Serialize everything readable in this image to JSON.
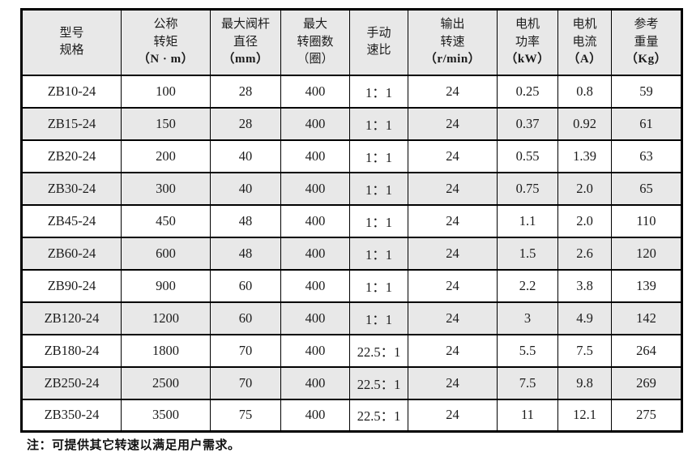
{
  "table": {
    "columns": [
      {
        "lines": [
          "型号",
          "规格"
        ],
        "unit": "",
        "unit_bold": false
      },
      {
        "lines": [
          "公称",
          "转矩"
        ],
        "unit": "（N · m）",
        "unit_bold": true
      },
      {
        "lines": [
          "最大阀杆",
          "直径"
        ],
        "unit": "（mm）",
        "unit_bold": true
      },
      {
        "lines": [
          "最大",
          "转圈数"
        ],
        "unit": "（圈）",
        "unit_bold": false
      },
      {
        "lines": [
          "手动",
          "速比"
        ],
        "unit": "",
        "unit_bold": false
      },
      {
        "lines": [
          "输出",
          "转速"
        ],
        "unit": "（r/min）",
        "unit_bold": true
      },
      {
        "lines": [
          "电机",
          "功率"
        ],
        "unit": "（kW）",
        "unit_bold": true
      },
      {
        "lines": [
          "电机",
          "电流"
        ],
        "unit": "（A）",
        "unit_bold": true
      },
      {
        "lines": [
          "参考",
          "重量"
        ],
        "unit": "（Kg）",
        "unit_bold": true
      }
    ],
    "rows": [
      [
        "ZB10-24",
        "100",
        "28",
        "400",
        "1：1",
        "24",
        "0.25",
        "0.8",
        "59"
      ],
      [
        "ZB15-24",
        "150",
        "28",
        "400",
        "1：1",
        "24",
        "0.37",
        "0.92",
        "61"
      ],
      [
        "ZB20-24",
        "200",
        "40",
        "400",
        "1：1",
        "24",
        "0.55",
        "1.39",
        "63"
      ],
      [
        "ZB30-24",
        "300",
        "40",
        "400",
        "1：1",
        "24",
        "0.75",
        "2.0",
        "65"
      ],
      [
        "ZB45-24",
        "450",
        "48",
        "400",
        "1：1",
        "24",
        "1.1",
        "2.0",
        "110"
      ],
      [
        "ZB60-24",
        "600",
        "48",
        "400",
        "1：1",
        "24",
        "1.5",
        "2.6",
        "120"
      ],
      [
        "ZB90-24",
        "900",
        "60",
        "400",
        "1：1",
        "24",
        "2.2",
        "3.8",
        "139"
      ],
      [
        "ZB120-24",
        "1200",
        "60",
        "400",
        "1：1",
        "24",
        "3",
        "4.9",
        "142"
      ],
      [
        "ZB180-24",
        "1800",
        "70",
        "400",
        "22.5：1",
        "24",
        "5.5",
        "7.5",
        "264"
      ],
      [
        "ZB250-24",
        "2500",
        "70",
        "400",
        "22.5：1",
        "24",
        "7.5",
        "9.8",
        "269"
      ],
      [
        "ZB350-24",
        "3500",
        "75",
        "400",
        "22.5：1",
        "24",
        "11",
        "12.1",
        "275"
      ]
    ],
    "shaded_row_indexes": [
      1,
      3,
      5,
      7,
      9
    ],
    "shade_color": "#e8e8e8",
    "border_color": "#000000"
  },
  "note": "注：可提供其它转速以满足用户需求。"
}
